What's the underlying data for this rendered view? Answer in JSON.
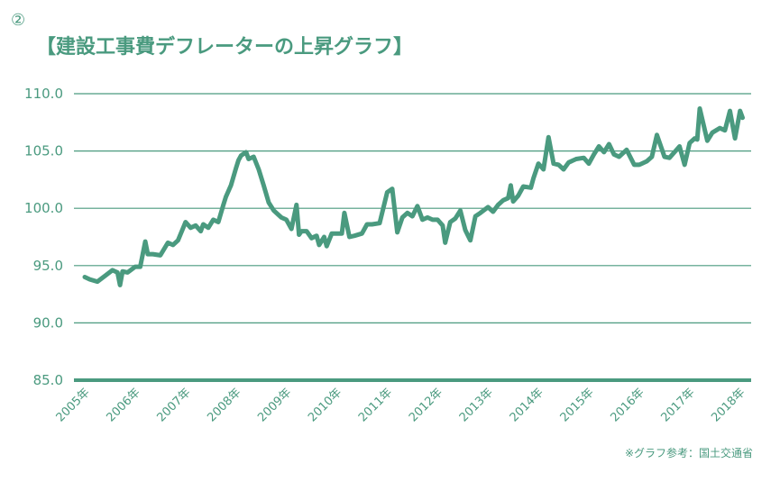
{
  "header": {
    "marker": "②",
    "title": "【建設工事費デフレーターの上昇グラフ】"
  },
  "source": "※グラフ参考：国土交通省",
  "colors": {
    "line": "#4a9a7f",
    "grid": "#4a9a7f",
    "text": "#4a9a7f"
  },
  "chart_data": {
    "type": "line",
    "title": "【建設工事費デフレーターの上昇グラフ】",
    "xlabel": "",
    "ylabel": "",
    "ylim": [
      85,
      110
    ],
    "yticks": [
      "110.0",
      "105.0",
      "100.0",
      "95.0",
      "90.0",
      "85.0"
    ],
    "xticks": [
      "2005年",
      "2006年",
      "2007年",
      "2008年",
      "2009年",
      "2010年",
      "2011年",
      "2012年",
      "2013年",
      "2014年",
      "2015年",
      "2016年",
      "2017年",
      "2018年"
    ],
    "grid": true,
    "legend": "none",
    "series": [
      {
        "x": [
          2005.0,
          2005.1,
          2005.25,
          2005.4,
          2005.55,
          2005.65,
          2005.7,
          2005.75,
          2005.85,
          2006.0,
          2006.1,
          2006.2,
          2006.25,
          2006.35,
          2006.5,
          2006.65,
          2006.75,
          2006.85,
          2007.0,
          2007.1,
          2007.2,
          2007.3,
          2007.35,
          2007.45,
          2007.55,
          2007.65,
          2007.75,
          2007.8,
          2007.9,
          2008.0,
          2008.05,
          2008.1,
          2008.2,
          2008.25,
          2008.35,
          2008.45,
          2008.55,
          2008.65,
          2008.75,
          2008.9,
          2009.0,
          2009.1,
          2009.2,
          2009.25,
          2009.3,
          2009.4,
          2009.5,
          2009.6,
          2009.65,
          2009.75,
          2009.8,
          2009.9,
          2010.0,
          2010.1,
          2010.15,
          2010.25,
          2010.35,
          2010.5,
          2010.6,
          2010.7,
          2010.85,
          2011.0,
          2011.1,
          2011.2,
          2011.3,
          2011.4,
          2011.5,
          2011.6,
          2011.7,
          2011.8,
          2011.9,
          2012.0,
          2012.1,
          2012.15,
          2012.25,
          2012.35,
          2012.45,
          2012.55,
          2012.65,
          2012.75,
          2012.85,
          2013.0,
          2013.1,
          2013.2,
          2013.3,
          2013.4,
          2013.45,
          2013.5,
          2013.6,
          2013.7,
          2013.85,
          2013.9,
          2014.0,
          2014.1,
          2014.2,
          2014.3,
          2014.4,
          2014.5,
          2014.6,
          2014.75,
          2014.9,
          2015.0,
          2015.1,
          2015.2,
          2015.3,
          2015.4,
          2015.5,
          2015.6,
          2015.75,
          2015.9,
          2016.0,
          2016.05,
          2016.15,
          2016.25,
          2016.35,
          2016.5,
          2016.6,
          2016.7,
          2016.8,
          2016.9,
          2017.0,
          2017.1,
          2017.15,
          2017.2,
          2017.35,
          2017.45,
          2017.6,
          2017.7,
          2017.8,
          2017.9,
          2018.0,
          2018.05
        ],
        "y": [
          94.0,
          93.8,
          93.6,
          94.1,
          94.6,
          94.4,
          93.3,
          94.5,
          94.4,
          94.9,
          94.9,
          97.1,
          96.0,
          96.0,
          95.9,
          97.0,
          96.8,
          97.2,
          98.8,
          98.3,
          98.5,
          98.0,
          98.6,
          98.3,
          99.0,
          98.8,
          100.3,
          101.0,
          102.0,
          103.5,
          104.2,
          104.6,
          104.9,
          104.3,
          104.5,
          103.4,
          102.0,
          100.5,
          99.8,
          99.2,
          99.0,
          98.2,
          100.3,
          97.7,
          98.0,
          98.0,
          97.4,
          97.6,
          96.8,
          97.5,
          96.7,
          97.8,
          97.8,
          97.8,
          99.6,
          97.5,
          97.6,
          97.8,
          98.6,
          98.6,
          98.7,
          101.4,
          101.7,
          97.9,
          99.2,
          99.6,
          99.3,
          100.2,
          99.0,
          99.2,
          99.0,
          99.0,
          98.5,
          97.0,
          98.8,
          99.1,
          99.8,
          98.1,
          97.2,
          99.3,
          99.6,
          100.1,
          99.7,
          100.3,
          100.7,
          100.9,
          102.0,
          100.6,
          101.1,
          101.9,
          101.8,
          102.6,
          103.9,
          103.4,
          106.2,
          103.9,
          103.8,
          103.4,
          104.0,
          104.3,
          104.4,
          103.9,
          104.7,
          105.4,
          104.9,
          105.6,
          104.7,
          104.5,
          105.1,
          103.8,
          103.8,
          103.9,
          104.1,
          104.5,
          106.4,
          104.5,
          104.4,
          104.9,
          105.4,
          103.8,
          105.7,
          106.1,
          106.0,
          108.7,
          105.9,
          106.6,
          107.0,
          106.8,
          108.5,
          106.1,
          108.5,
          107.9
        ]
      }
    ]
  }
}
